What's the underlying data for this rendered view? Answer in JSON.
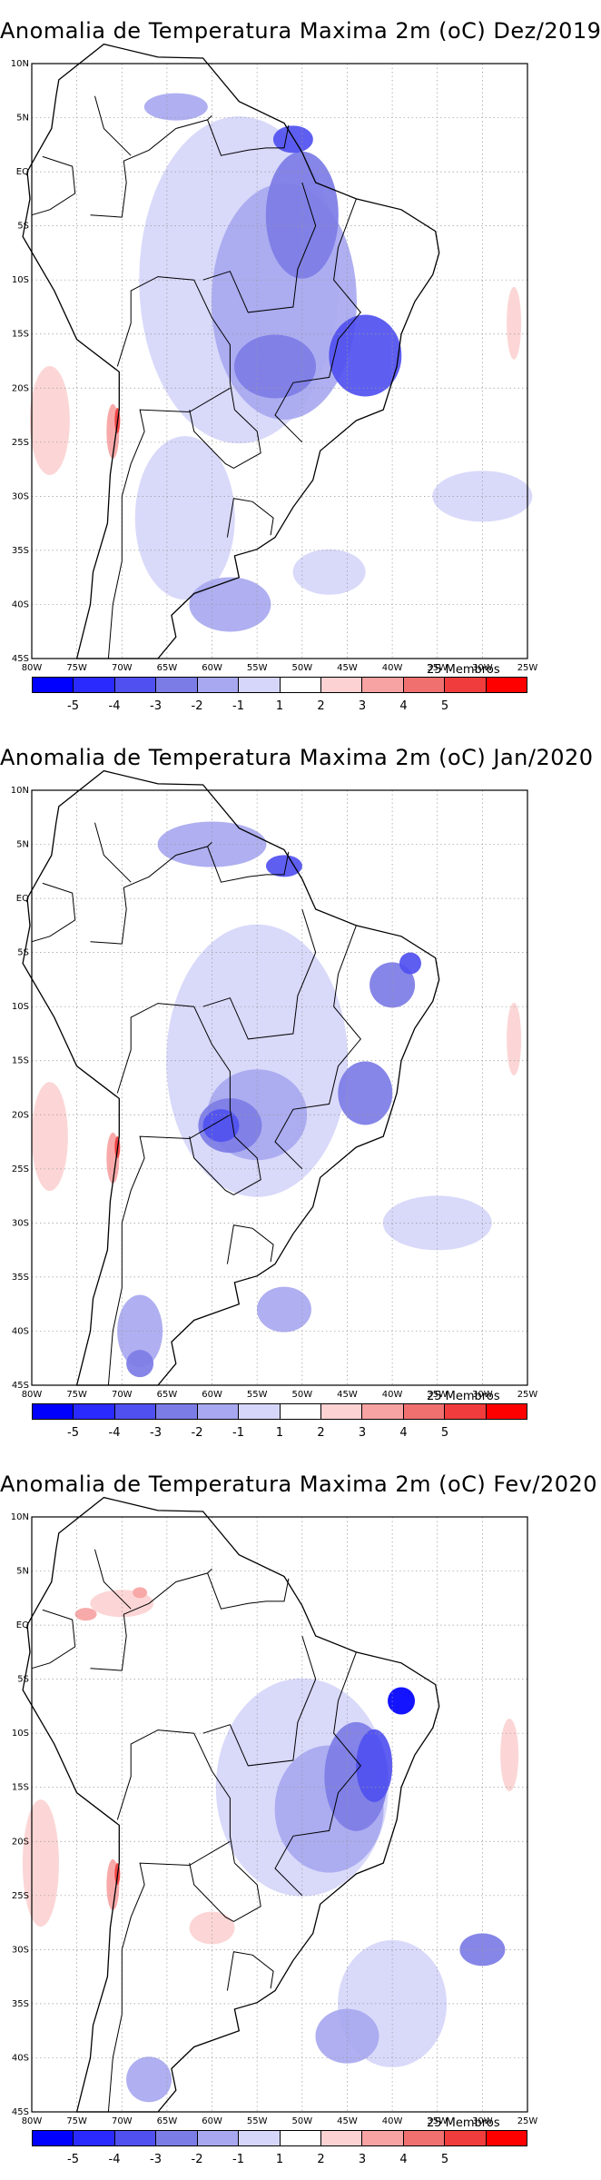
{
  "panels": [
    {
      "title": "Anomalia de Temperatura Maxima 2m (oC) Dez/2019",
      "members_label": "25 Membros"
    },
    {
      "title": "Anomalia de Temperatura Maxima 2m (oC) Jan/2020",
      "members_label": "25 Membros"
    },
    {
      "title": "Anomalia de Temperatura Maxima 2m (oC) Fev/2020",
      "members_label": "25 Membros"
    }
  ],
  "axes": {
    "lat_labels": [
      "10N",
      "5N",
      "EQ",
      "5S",
      "10S",
      "15S",
      "20S",
      "25S",
      "30S",
      "35S",
      "40S",
      "45S"
    ],
    "lon_labels": [
      "80W",
      "75W",
      "70W",
      "65W",
      "60W",
      "55W",
      "50W",
      "45W",
      "40W",
      "35W",
      "30W",
      "25W"
    ],
    "lat_range": [
      -45,
      10
    ],
    "lon_range": [
      -80,
      -25
    ],
    "grid": "dotted"
  },
  "colorbar": {
    "labels": [
      "-5",
      "-4",
      "-3",
      "-2",
      "-1",
      "1",
      "2",
      "3",
      "4",
      "5"
    ],
    "colors": [
      "#0000ff",
      "#2a2aff",
      "#5050f0",
      "#7c7ce6",
      "#a8a8f0",
      "#d6d6fa",
      "#ffffff",
      "#fcd2d2",
      "#f7a3a3",
      "#f07070",
      "#f03c3c",
      "#ff0000"
    ]
  },
  "chart_data": [
    {
      "type": "heatmap",
      "title": "Anomalia de Temperatura Maxima 2m (oC) Dez/2019",
      "units": "oC",
      "member_count": 25,
      "region": "South America",
      "levels": [
        -5,
        -4,
        -3,
        -2,
        -1,
        1,
        2,
        3,
        4,
        5
      ]
    },
    {
      "type": "heatmap",
      "title": "Anomalia de Temperatura Maxima 2m (oC) Jan/2020",
      "units": "oC",
      "member_count": 25,
      "region": "South America",
      "levels": [
        -5,
        -4,
        -3,
        -2,
        -1,
        1,
        2,
        3,
        4,
        5
      ]
    },
    {
      "type": "heatmap",
      "title": "Anomalia de Temperatura Maxima 2m (oC) Fev/2020",
      "units": "oC",
      "member_count": 25,
      "region": "South America",
      "levels": [
        -5,
        -4,
        -3,
        -2,
        -1,
        1,
        2,
        3,
        4,
        5
      ]
    }
  ]
}
